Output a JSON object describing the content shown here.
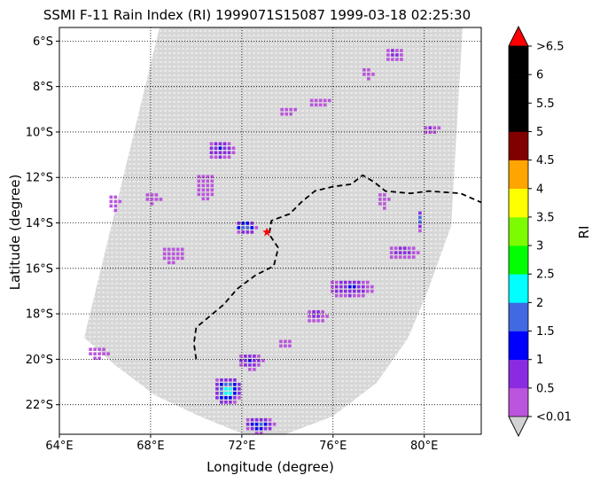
{
  "chart_data": {
    "type": "heatmap",
    "title": "SSMI F-11 Rain Index (RI) 1999071S15087 1999-03-18 02:25:30",
    "xlabel": "Longitude (degree)",
    "ylabel": "Latitude (degree)",
    "xlim": [
      64,
      82.5
    ],
    "ylim": [
      -23.3,
      -5.4
    ],
    "x_ticks": [
      {
        "value": 64,
        "label": "64°E"
      },
      {
        "value": 68,
        "label": "68°E"
      },
      {
        "value": 72,
        "label": "72°E"
      },
      {
        "value": 76,
        "label": "76°E"
      },
      {
        "value": 80,
        "label": "80°E"
      }
    ],
    "y_ticks": [
      {
        "value": -6,
        "label": "6°S"
      },
      {
        "value": -8,
        "label": "8°S"
      },
      {
        "value": -10,
        "label": "10°S"
      },
      {
        "value": -12,
        "label": "12°S"
      },
      {
        "value": -14,
        "label": "14°S"
      },
      {
        "value": -16,
        "label": "16°S"
      },
      {
        "value": -18,
        "label": "18°S"
      },
      {
        "value": -20,
        "label": "20°S"
      },
      {
        "value": -22,
        "label": "22°S"
      }
    ],
    "grid": true,
    "colorbar": {
      "label": "RI",
      "levels": [
        {
          "label": "<0.01",
          "color": "#bb55dd"
        },
        {
          "label": "0.5",
          "color": "#8a2be2"
        },
        {
          "label": "1",
          "color": "#0000ff"
        },
        {
          "label": "1.5",
          "color": "#4169e1"
        },
        {
          "label": "2",
          "color": "#00ffff"
        },
        {
          "label": "2.5",
          "color": "#00ff00"
        },
        {
          "label": "3",
          "color": "#7cfc00"
        },
        {
          "label": "3.5",
          "color": "#ffff00"
        },
        {
          "label": "4",
          "color": "#ffa500"
        },
        {
          "label": "4.5",
          "color": "#800000"
        },
        {
          "label": "5",
          "color": "#000000"
        },
        {
          "label": "5.5",
          "color": "#000000"
        },
        {
          "label": "6",
          "color": "#000000"
        },
        {
          "label": ">6.5",
          "color": "#ff0000"
        }
      ],
      "under_color": "#d3d3d3",
      "over_color": "#ff0000"
    },
    "swath_background_color": "#d3d3d3",
    "storm_center": {
      "lon": 73.1,
      "lat": -14.4,
      "color": "#ff0000"
    },
    "track": [
      [
        70.0,
        -20.0
      ],
      [
        69.9,
        -19.3
      ],
      [
        70.0,
        -18.6
      ],
      [
        70.6,
        -18.1
      ],
      [
        71.2,
        -17.6
      ],
      [
        71.8,
        -16.9
      ],
      [
        72.6,
        -16.3
      ],
      [
        73.4,
        -15.9
      ],
      [
        73.6,
        -15.1
      ],
      [
        73.2,
        -14.5
      ],
      [
        73.3,
        -13.9
      ],
      [
        74.1,
        -13.6
      ],
      [
        74.6,
        -13.1
      ],
      [
        75.2,
        -12.6
      ],
      [
        76.0,
        -12.4
      ],
      [
        76.8,
        -12.3
      ],
      [
        77.3,
        -11.9
      ],
      [
        77.8,
        -12.2
      ],
      [
        78.3,
        -12.6
      ],
      [
        79.4,
        -12.7
      ],
      [
        80.2,
        -12.6
      ],
      [
        81.6,
        -12.7
      ],
      [
        82.5,
        -13.1
      ]
    ],
    "rain_regions": [
      {
        "name": "cluster-north-75",
        "lon": 75.3,
        "lat": -8.6,
        "radius": [
          0.5,
          0.25
        ],
        "level": 0
      },
      {
        "name": "cluster-north-74",
        "lon": 73.9,
        "lat": -9.0,
        "radius": [
          0.4,
          0.25
        ],
        "level": 0
      },
      {
        "name": "cluster-north-79",
        "lon": 78.6,
        "lat": -6.5,
        "radius": [
          0.45,
          0.35
        ],
        "level": 1
      },
      {
        "name": "cluster-north-78",
        "lon": 77.4,
        "lat": -7.3,
        "radius": [
          0.3,
          0.3
        ],
        "level": 0
      },
      {
        "name": "cluster-80-10",
        "lon": 80.2,
        "lat": -9.8,
        "radius": [
          0.4,
          0.25
        ],
        "level": 1
      },
      {
        "name": "cluster-71-11",
        "lon": 71.0,
        "lat": -10.7,
        "radius": [
          0.6,
          0.45
        ],
        "level": 2
      },
      {
        "name": "cluster-70-12",
        "lon": 70.3,
        "lat": -12.3,
        "radius": [
          0.45,
          0.6
        ],
        "level": 0
      },
      {
        "name": "cluster-68-12",
        "lon": 68.0,
        "lat": -12.8,
        "radius": [
          0.4,
          0.3
        ],
        "level": 0
      },
      {
        "name": "cluster-66-13",
        "lon": 66.3,
        "lat": -13.0,
        "radius": [
          0.3,
          0.4
        ],
        "level": 0
      },
      {
        "name": "cluster-72-14",
        "lon": 72.1,
        "lat": -14.1,
        "radius": [
          0.5,
          0.35
        ],
        "level": 4
      },
      {
        "name": "cluster-69-15",
        "lon": 68.9,
        "lat": -15.3,
        "radius": [
          0.55,
          0.4
        ],
        "level": 0
      },
      {
        "name": "cluster-78-13",
        "lon": 78.1,
        "lat": -12.9,
        "radius": [
          0.3,
          0.4
        ],
        "level": 0
      },
      {
        "name": "cluster-80-14",
        "lon": 79.7,
        "lat": -13.8,
        "radius": [
          0.15,
          0.5
        ],
        "level": 4
      },
      {
        "name": "cluster-77-17",
        "lon": 76.7,
        "lat": -16.8,
        "radius": [
          1.0,
          0.45
        ],
        "level": 2
      },
      {
        "name": "cluster-79-15",
        "lon": 79.0,
        "lat": -15.2,
        "radius": [
          0.7,
          0.35
        ],
        "level": 1
      },
      {
        "name": "cluster-75-18",
        "lon": 75.2,
        "lat": -18.0,
        "radius": [
          0.5,
          0.35
        ],
        "level": 1
      },
      {
        "name": "cluster-71-21",
        "lon": 71.3,
        "lat": -21.3,
        "radius": [
          0.65,
          0.65
        ],
        "level": 5
      },
      {
        "name": "cluster-72-20",
        "lon": 72.3,
        "lat": -20.0,
        "radius": [
          0.6,
          0.4
        ],
        "level": 2
      },
      {
        "name": "cluster-73-23",
        "lon": 72.7,
        "lat": -22.8,
        "radius": [
          0.7,
          0.4
        ],
        "level": 3
      },
      {
        "name": "cluster-66-20",
        "lon": 65.6,
        "lat": -19.6,
        "radius": [
          0.5,
          0.3
        ],
        "level": 0
      },
      {
        "name": "cluster-74-19",
        "lon": 73.8,
        "lat": -19.2,
        "radius": [
          0.35,
          0.25
        ],
        "level": 0
      }
    ]
  }
}
